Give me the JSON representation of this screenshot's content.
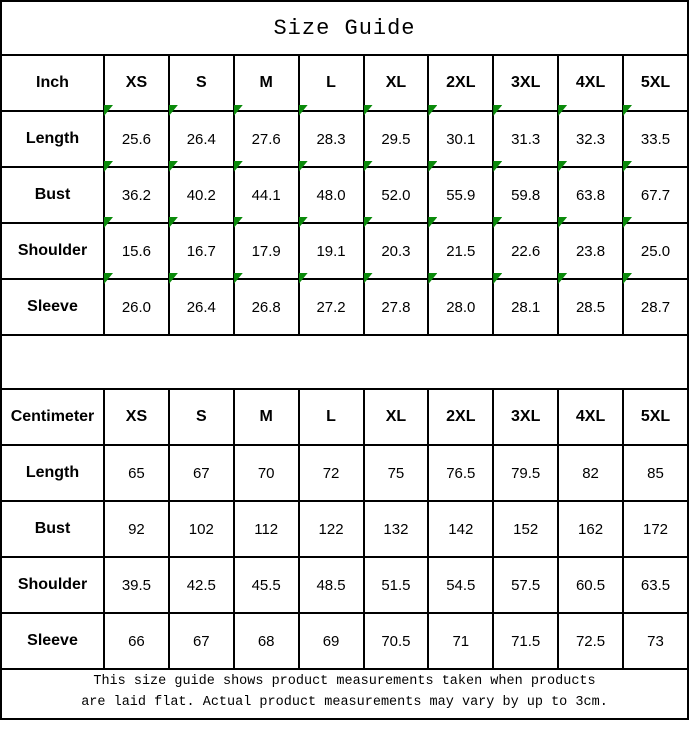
{
  "title": "Size Guide",
  "marker_color": "#0a8a0a",
  "border_color": "#000000",
  "tables": [
    {
      "unit_label": "Inch",
      "markers": true,
      "sizes": [
        "XS",
        "S",
        "M",
        "L",
        "XL",
        "2XL",
        "3XL",
        "4XL",
        "5XL"
      ],
      "rows": [
        {
          "label": "Length",
          "values": [
            "25.6",
            "26.4",
            "27.6",
            "28.3",
            "29.5",
            "30.1",
            "31.3",
            "32.3",
            "33.5"
          ]
        },
        {
          "label": "Bust",
          "values": [
            "36.2",
            "40.2",
            "44.1",
            "48.0",
            "52.0",
            "55.9",
            "59.8",
            "63.8",
            "67.7"
          ]
        },
        {
          "label": "Shoulder",
          "values": [
            "15.6",
            "16.7",
            "17.9",
            "19.1",
            "20.3",
            "21.5",
            "22.6",
            "23.8",
            "25.0"
          ]
        },
        {
          "label": "Sleeve",
          "values": [
            "26.0",
            "26.4",
            "26.8",
            "27.2",
            "27.8",
            "28.0",
            "28.1",
            "28.5",
            "28.7"
          ]
        }
      ]
    },
    {
      "unit_label": "Centimeter",
      "markers": false,
      "sizes": [
        "XS",
        "S",
        "M",
        "L",
        "XL",
        "2XL",
        "3XL",
        "4XL",
        "5XL"
      ],
      "rows": [
        {
          "label": "Length",
          "values": [
            "65",
            "67",
            "70",
            "72",
            "75",
            "76.5",
            "79.5",
            "82",
            "85"
          ]
        },
        {
          "label": "Bust",
          "values": [
            "92",
            "102",
            "112",
            "122",
            "132",
            "142",
            "152",
            "162",
            "172"
          ]
        },
        {
          "label": "Shoulder",
          "values": [
            "39.5",
            "42.5",
            "45.5",
            "48.5",
            "51.5",
            "54.5",
            "57.5",
            "60.5",
            "63.5"
          ]
        },
        {
          "label": "Sleeve",
          "values": [
            "66",
            "67",
            "68",
            "69",
            "70.5",
            "71",
            "71.5",
            "72.5",
            "73"
          ]
        }
      ]
    }
  ],
  "footer": {
    "line1": "This size guide shows product measurements taken when products",
    "line2": "are laid flat. Actual product measurements may vary by up to 3cm."
  }
}
